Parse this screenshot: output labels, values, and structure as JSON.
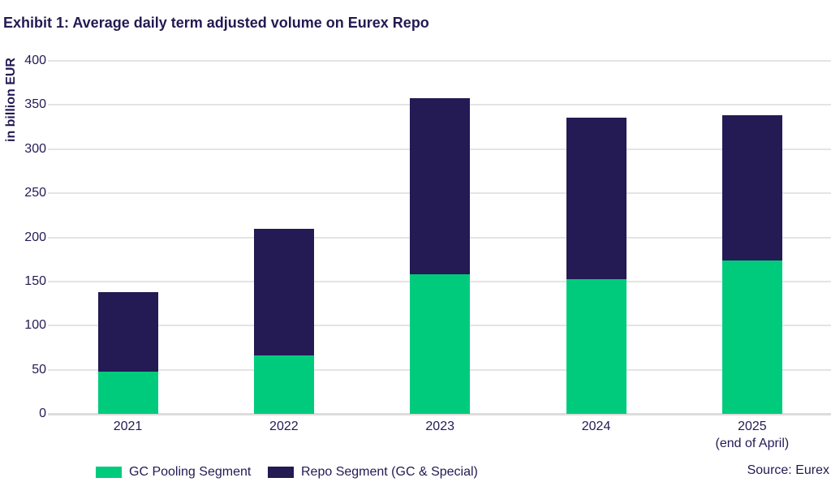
{
  "title": "Exhibit 1: Average daily term adjusted volume on Eurex Repo",
  "source": "Source: Eurex",
  "colors": {
    "navy": "#241A54",
    "green": "#00CB7D",
    "text": "#221A52",
    "gridline": "#E4E4E4",
    "baseline": "#DCDCDC"
  },
  "chart_data": {
    "type": "bar",
    "stacked": true,
    "title": "Exhibit 1: Average daily term adjusted volume on Eurex Repo",
    "ylabel": "in billion EUR",
    "xlabel": "",
    "ylim": [
      0,
      400
    ],
    "yticks": [
      0,
      50,
      100,
      150,
      200,
      250,
      300,
      350,
      400
    ],
    "grid": true,
    "legend_position": "bottom",
    "categories": [
      "2021",
      "2022",
      "2023",
      "2024",
      "2025"
    ],
    "category_sublabels": [
      "",
      "",
      "",
      "",
      "(end of April)"
    ],
    "series": [
      {
        "name": "GC Pooling Segment",
        "color": "#00CB7D",
        "values": [
          48,
          66,
          158,
          153,
          174
        ]
      },
      {
        "name": "Repo Segment (GC & Special)",
        "color": "#241A54",
        "values": [
          90,
          144,
          200,
          183,
          164
        ]
      }
    ],
    "totals": [
      138,
      210,
      358,
      336,
      338
    ]
  }
}
